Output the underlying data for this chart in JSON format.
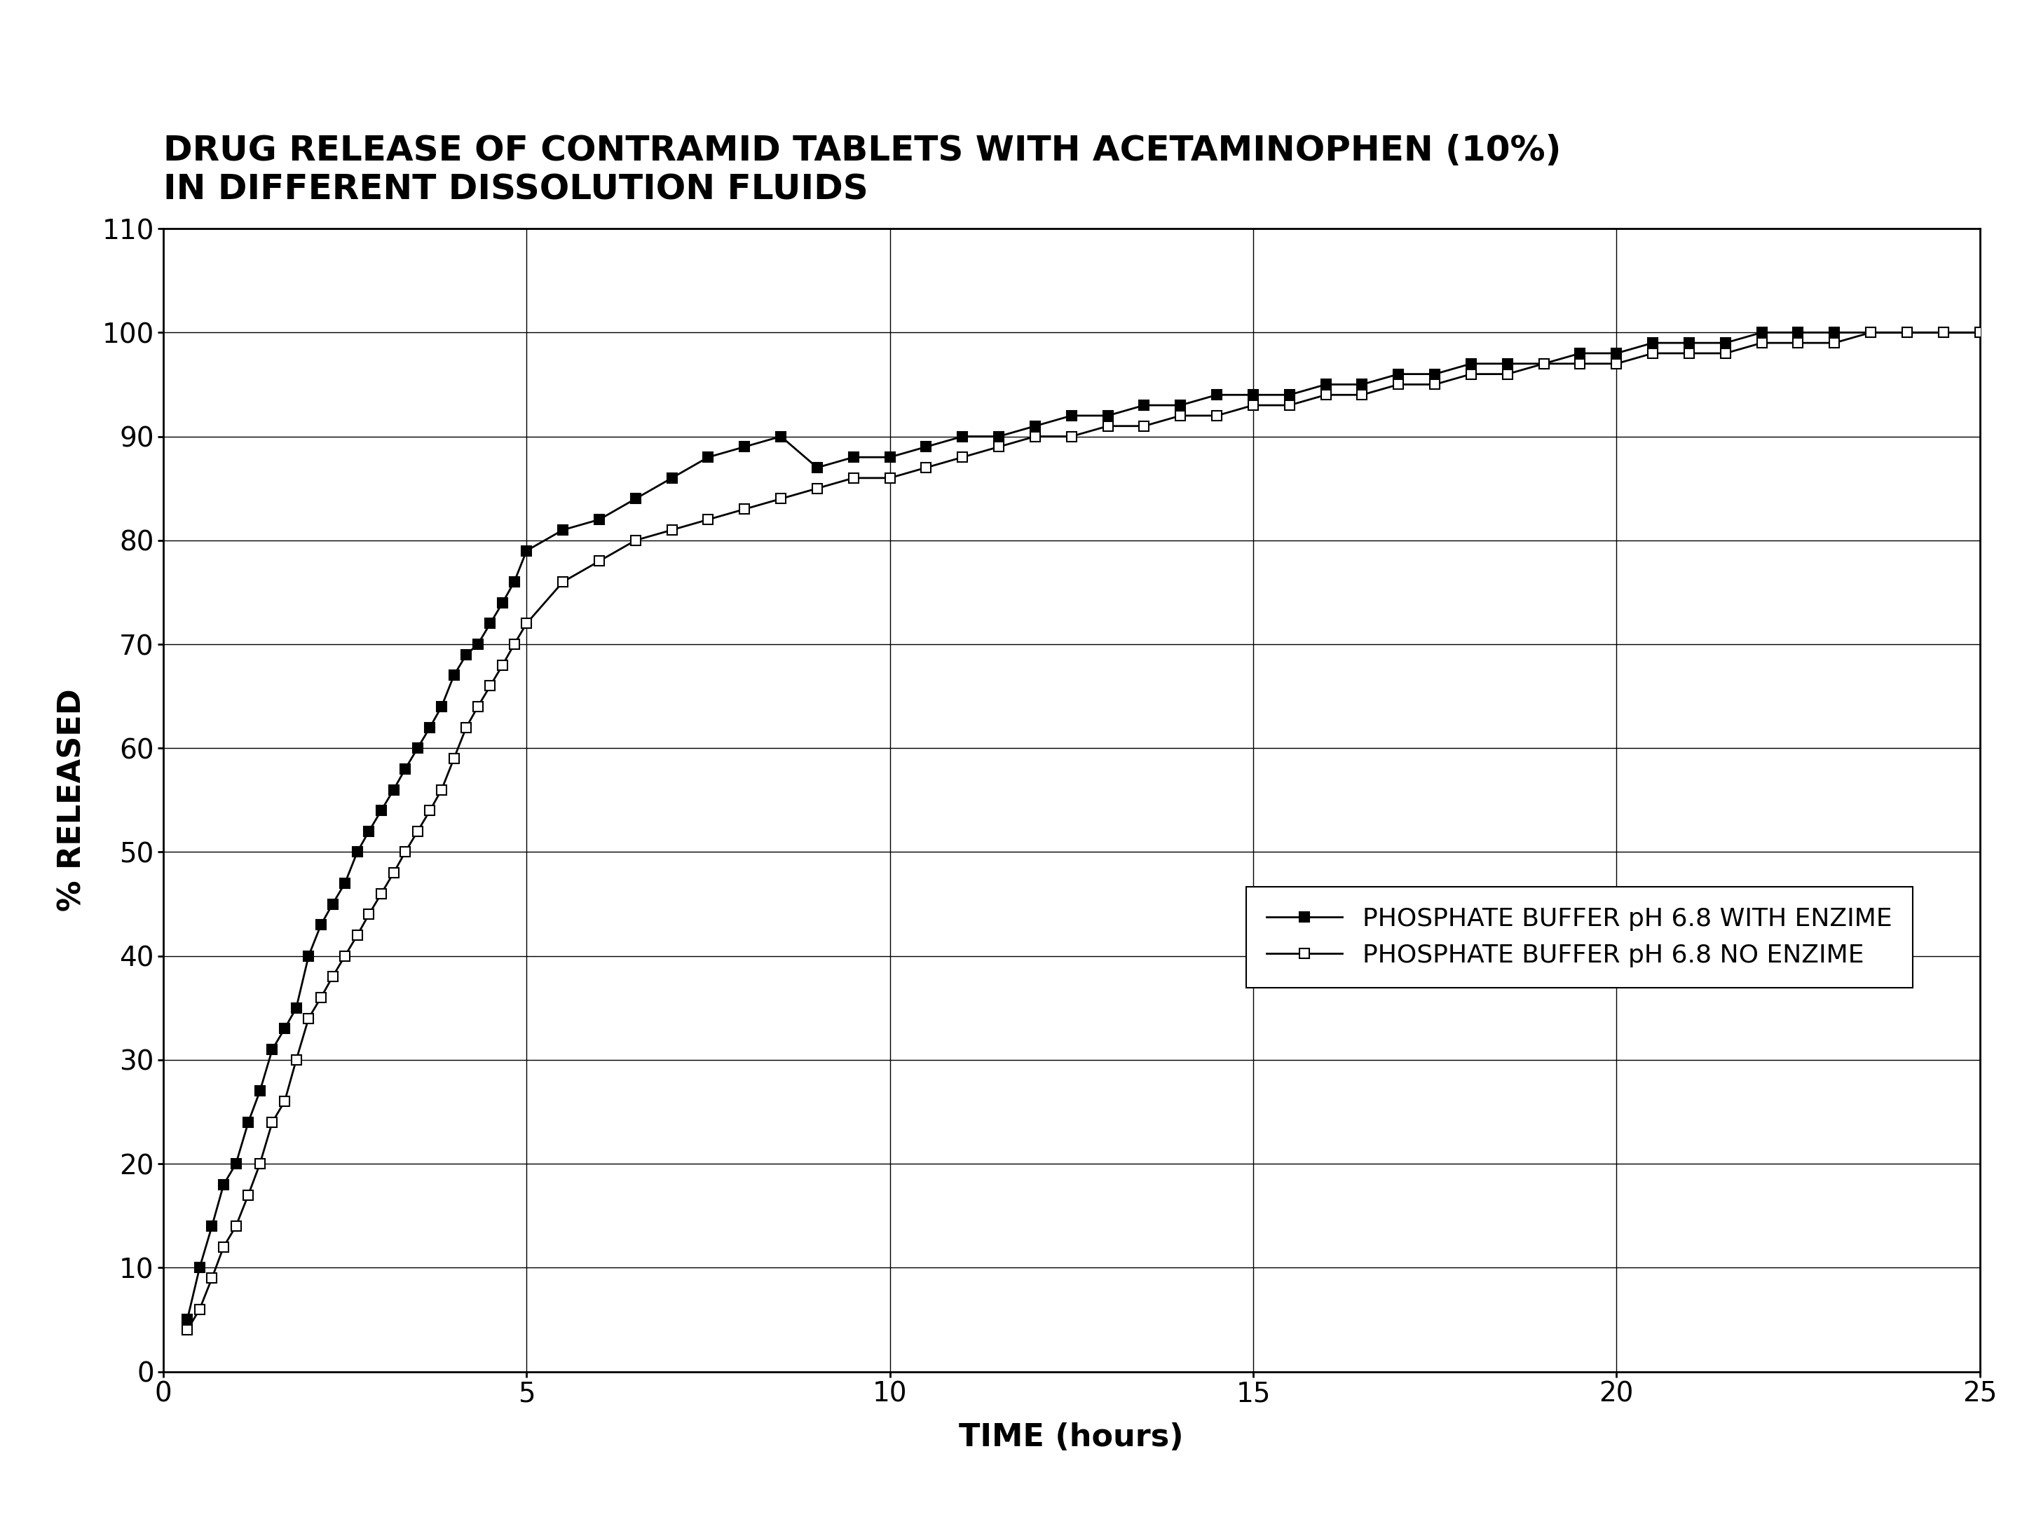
{
  "title_line1": "DRUG RELEASE OF CONTRAMID TABLETS WITH ACETAMINOPHEN (10%)",
  "title_line2": "IN DIFFERENT DISSOLUTION FLUIDS",
  "xlabel": "TIME (hours)",
  "ylabel": "% RELEASED",
  "xlim": [
    0,
    25
  ],
  "ylim": [
    0,
    110
  ],
  "xticks": [
    0,
    5,
    10,
    15,
    20,
    25
  ],
  "yticks": [
    0,
    10,
    20,
    30,
    40,
    50,
    60,
    70,
    80,
    90,
    100,
    110
  ],
  "series1_label": "PHOSPHATE BUFFER pH 6.8 WITH ENZIME",
  "series2_label": "PHOSPHATE BUFFER pH 6.8 NO ENZIME",
  "background_color": "#ffffff",
  "title_fontsize": 36,
  "label_fontsize": 32,
  "tick_fontsize": 28,
  "legend_fontsize": 26,
  "linewidth": 2.0,
  "markersize": 10,
  "with_enzyme_x": [
    0.33,
    0.5,
    0.67,
    0.83,
    1.0,
    1.17,
    1.33,
    1.5,
    1.67,
    1.83,
    2.0,
    2.17,
    2.33,
    2.5,
    2.67,
    2.83,
    3.0,
    3.17,
    3.33,
    3.5,
    3.67,
    3.83,
    4.0,
    4.17,
    4.33,
    4.5,
    4.67,
    4.83,
    5.0,
    5.5,
    6.0,
    6.5,
    7.0,
    7.5,
    8.0,
    8.5,
    9.0,
    9.5,
    10.0,
    10.5,
    11.0,
    11.5,
    12.0,
    12.5,
    13.0,
    13.5,
    14.0,
    14.5,
    15.0,
    15.5,
    16.0,
    16.5,
    17.0,
    17.5,
    18.0,
    18.5,
    19.0,
    19.5,
    20.0,
    20.5,
    21.0,
    21.5,
    22.0,
    22.5,
    23.0,
    23.5,
    24.0,
    24.5,
    25.0
  ],
  "with_enzyme_y": [
    5,
    10,
    14,
    18,
    20,
    24,
    27,
    31,
    33,
    35,
    40,
    43,
    45,
    47,
    50,
    52,
    54,
    56,
    58,
    60,
    62,
    64,
    67,
    69,
    70,
    72,
    74,
    76,
    79,
    81,
    82,
    84,
    86,
    88,
    89,
    90,
    87,
    88,
    88,
    89,
    90,
    90,
    91,
    92,
    92,
    93,
    93,
    94,
    94,
    94,
    95,
    95,
    96,
    96,
    97,
    97,
    97,
    98,
    98,
    99,
    99,
    99,
    100,
    100,
    100,
    100,
    100,
    100,
    100
  ],
  "no_enzyme_x": [
    0.33,
    0.5,
    0.67,
    0.83,
    1.0,
    1.17,
    1.33,
    1.5,
    1.67,
    1.83,
    2.0,
    2.17,
    2.33,
    2.5,
    2.67,
    2.83,
    3.0,
    3.17,
    3.33,
    3.5,
    3.67,
    3.83,
    4.0,
    4.17,
    4.33,
    4.5,
    4.67,
    4.83,
    5.0,
    5.5,
    6.0,
    6.5,
    7.0,
    7.5,
    8.0,
    8.5,
    9.0,
    9.5,
    10.0,
    10.5,
    11.0,
    11.5,
    12.0,
    12.5,
    13.0,
    13.5,
    14.0,
    14.5,
    15.0,
    15.5,
    16.0,
    16.5,
    17.0,
    17.5,
    18.0,
    18.5,
    19.0,
    19.5,
    20.0,
    20.5,
    21.0,
    21.5,
    22.0,
    22.5,
    23.0,
    23.5,
    24.0,
    24.5,
    25.0
  ],
  "no_enzyme_y": [
    4,
    6,
    9,
    12,
    14,
    17,
    20,
    24,
    26,
    30,
    34,
    36,
    38,
    40,
    42,
    44,
    46,
    48,
    50,
    52,
    54,
    56,
    59,
    62,
    64,
    66,
    68,
    70,
    72,
    76,
    78,
    80,
    81,
    82,
    83,
    84,
    85,
    86,
    86,
    87,
    88,
    89,
    90,
    90,
    91,
    91,
    92,
    92,
    93,
    93,
    94,
    94,
    95,
    95,
    96,
    96,
    97,
    97,
    97,
    98,
    98,
    98,
    99,
    99,
    99,
    100,
    100,
    100,
    100
  ]
}
